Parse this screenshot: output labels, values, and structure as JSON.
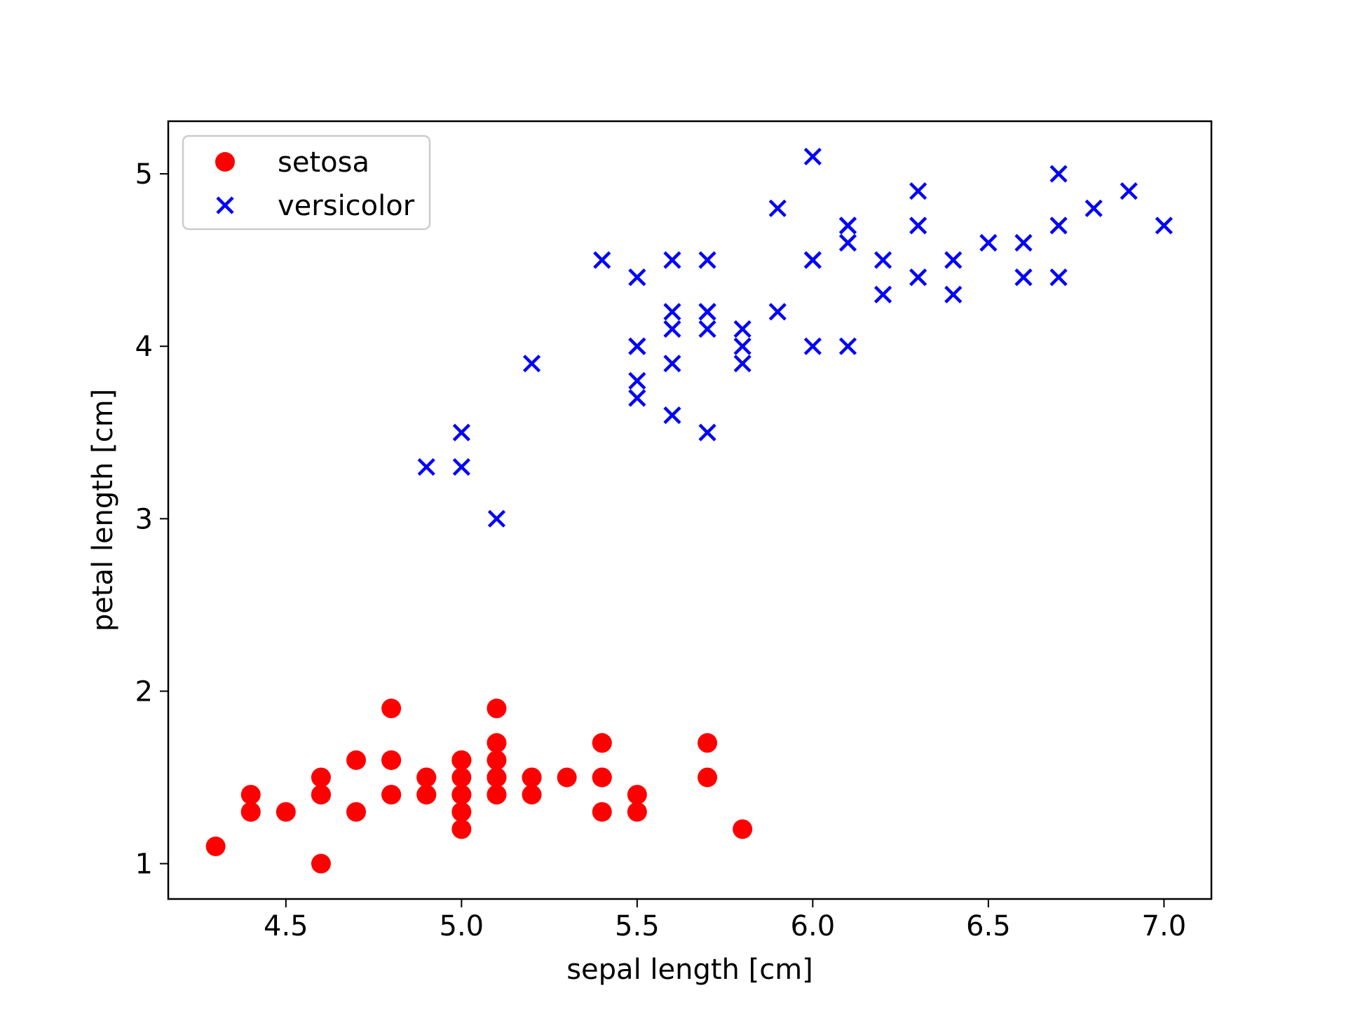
{
  "chart_data": {
    "type": "scatter",
    "title": "",
    "xlabel": "sepal length [cm]",
    "ylabel": "petal length [cm]",
    "xlim": [
      4.165,
      7.135
    ],
    "ylim": [
      0.795,
      5.305
    ],
    "xticks": [
      4.5,
      5.0,
      5.5,
      6.0,
      6.5,
      7.0
    ],
    "xtick_labels": [
      "4.5",
      "5.0",
      "5.5",
      "6.0",
      "6.5",
      "7.0"
    ],
    "yticks": [
      1,
      2,
      3,
      4,
      5
    ],
    "ytick_labels": [
      "1",
      "2",
      "3",
      "4",
      "5"
    ],
    "grid": false,
    "legend_position": "top-left",
    "series": [
      {
        "name": "setosa",
        "marker": "circle",
        "color": "#ff0000",
        "points": [
          [
            5.1,
            1.4
          ],
          [
            4.9,
            1.4
          ],
          [
            4.7,
            1.3
          ],
          [
            4.6,
            1.5
          ],
          [
            5.0,
            1.4
          ],
          [
            5.4,
            1.7
          ],
          [
            4.6,
            1.4
          ],
          [
            5.0,
            1.5
          ],
          [
            4.4,
            1.4
          ],
          [
            4.9,
            1.5
          ],
          [
            5.4,
            1.5
          ],
          [
            4.8,
            1.6
          ],
          [
            4.8,
            1.4
          ],
          [
            4.3,
            1.1
          ],
          [
            5.8,
            1.2
          ],
          [
            5.7,
            1.5
          ],
          [
            5.4,
            1.3
          ],
          [
            5.1,
            1.4
          ],
          [
            5.7,
            1.7
          ],
          [
            5.1,
            1.5
          ],
          [
            5.4,
            1.7
          ],
          [
            5.1,
            1.5
          ],
          [
            4.6,
            1.0
          ],
          [
            5.1,
            1.7
          ],
          [
            4.8,
            1.9
          ],
          [
            5.0,
            1.6
          ],
          [
            5.0,
            1.6
          ],
          [
            5.2,
            1.5
          ],
          [
            5.2,
            1.4
          ],
          [
            4.7,
            1.6
          ],
          [
            4.8,
            1.6
          ],
          [
            5.4,
            1.5
          ],
          [
            5.2,
            1.5
          ],
          [
            5.5,
            1.4
          ],
          [
            4.9,
            1.5
          ],
          [
            5.0,
            1.2
          ],
          [
            5.5,
            1.3
          ],
          [
            4.9,
            1.4
          ],
          [
            4.4,
            1.3
          ],
          [
            5.1,
            1.5
          ],
          [
            5.0,
            1.3
          ],
          [
            4.5,
            1.3
          ],
          [
            4.4,
            1.3
          ],
          [
            5.0,
            1.6
          ],
          [
            5.1,
            1.9
          ],
          [
            4.8,
            1.4
          ],
          [
            5.1,
            1.6
          ],
          [
            4.6,
            1.4
          ],
          [
            5.3,
            1.5
          ],
          [
            5.0,
            1.4
          ]
        ]
      },
      {
        "name": "versicolor",
        "marker": "x",
        "color": "#0000ff",
        "points": [
          [
            7.0,
            4.7
          ],
          [
            6.4,
            4.5
          ],
          [
            6.9,
            4.9
          ],
          [
            5.5,
            4.0
          ],
          [
            6.5,
            4.6
          ],
          [
            5.7,
            4.5
          ],
          [
            6.3,
            4.7
          ],
          [
            4.9,
            3.3
          ],
          [
            6.6,
            4.6
          ],
          [
            5.2,
            3.9
          ],
          [
            5.0,
            3.5
          ],
          [
            5.9,
            4.2
          ],
          [
            6.0,
            4.0
          ],
          [
            6.1,
            4.7
          ],
          [
            5.6,
            3.6
          ],
          [
            6.7,
            4.4
          ],
          [
            5.6,
            4.5
          ],
          [
            5.8,
            4.1
          ],
          [
            6.2,
            4.5
          ],
          [
            5.6,
            3.9
          ],
          [
            5.9,
            4.8
          ],
          [
            6.1,
            4.0
          ],
          [
            6.3,
            4.9
          ],
          [
            6.1,
            4.7
          ],
          [
            6.4,
            4.3
          ],
          [
            6.6,
            4.4
          ],
          [
            6.8,
            4.8
          ],
          [
            6.7,
            5.0
          ],
          [
            6.0,
            4.5
          ],
          [
            5.7,
            3.5
          ],
          [
            5.5,
            3.8
          ],
          [
            5.5,
            3.7
          ],
          [
            5.8,
            3.9
          ],
          [
            6.0,
            5.1
          ],
          [
            5.4,
            4.5
          ],
          [
            6.0,
            4.5
          ],
          [
            6.7,
            4.7
          ],
          [
            6.3,
            4.4
          ],
          [
            5.6,
            4.1
          ],
          [
            5.5,
            4.0
          ],
          [
            5.5,
            4.4
          ],
          [
            6.1,
            4.6
          ],
          [
            5.8,
            4.0
          ],
          [
            5.0,
            3.3
          ],
          [
            5.6,
            4.2
          ],
          [
            5.7,
            4.2
          ],
          [
            5.7,
            4.2
          ],
          [
            6.2,
            4.3
          ],
          [
            5.1,
            3.0
          ],
          [
            5.7,
            4.1
          ]
        ]
      }
    ]
  }
}
